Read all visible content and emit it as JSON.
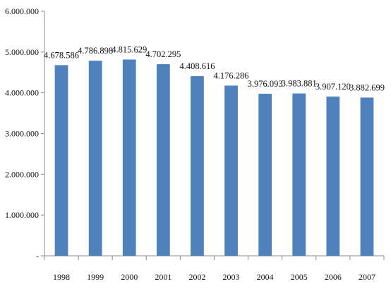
{
  "chart_data": {
    "type": "bar",
    "title": "",
    "xlabel": "",
    "ylabel": "",
    "categories": [
      "1998",
      "1999",
      "2000",
      "2001",
      "2002",
      "2003",
      "2004",
      "2005",
      "2006",
      "2007"
    ],
    "values": [
      4678586,
      4786898,
      4815629,
      4702295,
      4408616,
      4176286,
      3976093,
      3983881,
      3907120,
      3882699
    ],
    "data_labels": [
      "4.678.586",
      "4.786.898",
      "4.815.629",
      "4.702.295",
      "4.408.616",
      "4.176.286",
      "3.976.093",
      "3.983.881",
      "3.907.120",
      "3.882.699"
    ],
    "ylim": [
      0,
      6000000
    ],
    "y_ticks": [
      0,
      1000000,
      2000000,
      3000000,
      4000000,
      5000000,
      6000000
    ],
    "y_tick_labels": [
      "-",
      "1.000.000",
      "2.000.000",
      "3.000.000",
      "4.000.000",
      "5.000.000",
      "6.000.000"
    ],
    "grid": false,
    "legend": "none",
    "bar_color": "#4F81BD",
    "axis_color": "#8C8C8C"
  }
}
